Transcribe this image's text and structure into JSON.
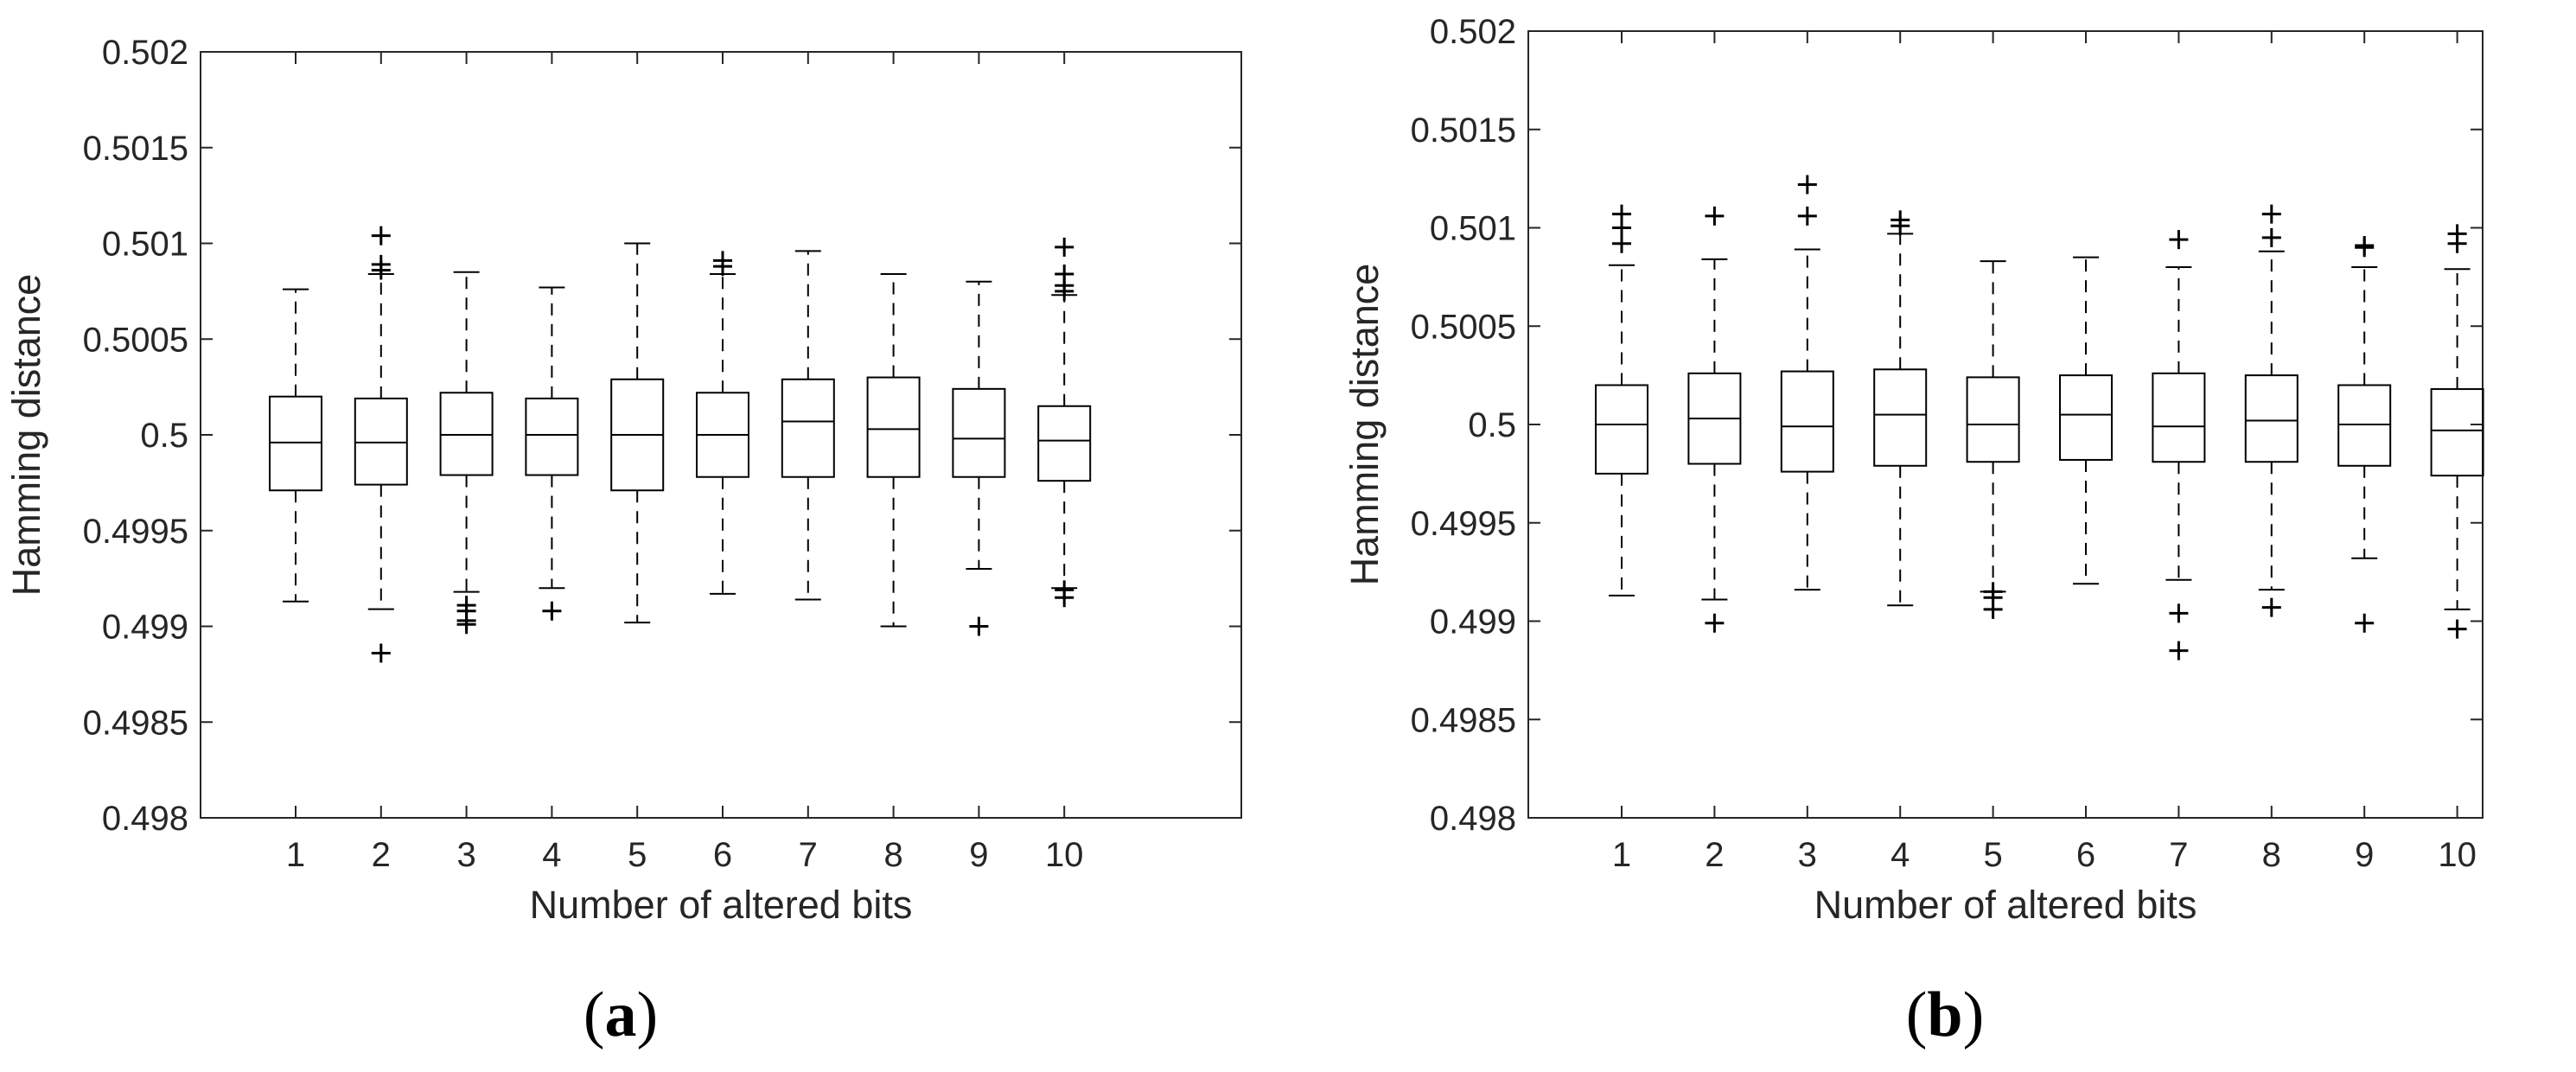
{
  "chart_data": [
    {
      "type": "boxplot",
      "panel_label": "a",
      "xlabel": "Number of altered bits",
      "ylabel": "Hamming distance",
      "ylim": [
        0.498,
        0.502
      ],
      "yticks": [
        "0.498",
        "0.4985",
        "0.499",
        "0.4995",
        "0.5",
        "0.5005",
        "0.501",
        "0.5015",
        "0.502"
      ],
      "categories": [
        "1",
        "2",
        "3",
        "4",
        "5",
        "6",
        "7",
        "8",
        "9",
        "10"
      ],
      "boxes": [
        {
          "whisker_low": 0.49913,
          "q1": 0.49971,
          "median": 0.49996,
          "q3": 0.5002,
          "whisker_high": 0.50076,
          "outliers": []
        },
        {
          "whisker_low": 0.49909,
          "q1": 0.49974,
          "median": 0.49996,
          "q3": 0.50019,
          "whisker_high": 0.50084,
          "outliers": [
            0.49886,
            0.50086,
            0.50089,
            0.50104
          ]
        },
        {
          "whisker_low": 0.49918,
          "q1": 0.49979,
          "median": 0.5,
          "q3": 0.50022,
          "whisker_high": 0.50085,
          "outliers": [
            0.49901,
            0.49903,
            0.49908,
            0.49911
          ]
        },
        {
          "whisker_low": 0.4992,
          "q1": 0.49979,
          "median": 0.5,
          "q3": 0.50019,
          "whisker_high": 0.50077,
          "outliers": [
            0.49908
          ]
        },
        {
          "whisker_low": 0.49902,
          "q1": 0.49971,
          "median": 0.5,
          "q3": 0.50029,
          "whisker_high": 0.501,
          "outliers": []
        },
        {
          "whisker_low": 0.49917,
          "q1": 0.49978,
          "median": 0.5,
          "q3": 0.50022,
          "whisker_high": 0.50084,
          "outliers": [
            0.50088,
            0.50091
          ]
        },
        {
          "whisker_low": 0.49914,
          "q1": 0.49978,
          "median": 0.50007,
          "q3": 0.50029,
          "whisker_high": 0.50096,
          "outliers": []
        },
        {
          "whisker_low": 0.499,
          "q1": 0.49978,
          "median": 0.50003,
          "q3": 0.5003,
          "whisker_high": 0.50084,
          "outliers": []
        },
        {
          "whisker_low": 0.4993,
          "q1": 0.49978,
          "median": 0.49998,
          "q3": 0.50024,
          "whisker_high": 0.5008,
          "outliers": [
            0.499
          ]
        },
        {
          "whisker_low": 0.4992,
          "q1": 0.49976,
          "median": 0.49997,
          "q3": 0.50015,
          "whisker_high": 0.50073,
          "outliers": [
            0.49915,
            0.49919,
            0.50075,
            0.50078,
            0.50084,
            0.50098
          ]
        }
      ]
    },
    {
      "type": "boxplot",
      "panel_label": "b",
      "xlabel": "Number of altered bits",
      "ylabel": "Hamming distance",
      "ylim": [
        0.498,
        0.502
      ],
      "yticks": [
        "0.498",
        "0.4985",
        "0.499",
        "0.4995",
        "0.5",
        "0.5005",
        "0.501",
        "0.5015",
        "0.502"
      ],
      "categories": [
        "1",
        "2",
        "3",
        "4",
        "5",
        "6",
        "7",
        "8",
        "9",
        "10"
      ],
      "boxes": [
        {
          "whisker_low": 0.49913,
          "q1": 0.49975,
          "median": 0.5,
          "q3": 0.5002,
          "whisker_high": 0.50081,
          "outliers": [
            0.50092,
            0.501,
            0.50107
          ]
        },
        {
          "whisker_low": 0.49911,
          "q1": 0.4998,
          "median": 0.50003,
          "q3": 0.50026,
          "whisker_high": 0.50084,
          "outliers": [
            0.49899,
            0.50106
          ]
        },
        {
          "whisker_low": 0.49916,
          "q1": 0.49976,
          "median": 0.49999,
          "q3": 0.50027,
          "whisker_high": 0.50089,
          "outliers": [
            0.50106,
            0.50122
          ]
        },
        {
          "whisker_low": 0.49908,
          "q1": 0.49979,
          "median": 0.50005,
          "q3": 0.50028,
          "whisker_high": 0.50097,
          "outliers": [
            0.50101,
            0.50104
          ]
        },
        {
          "whisker_low": 0.49915,
          "q1": 0.49981,
          "median": 0.5,
          "q3": 0.50024,
          "whisker_high": 0.50083,
          "outliers": [
            0.49906,
            0.49912,
            0.49915
          ]
        },
        {
          "whisker_low": 0.49919,
          "q1": 0.49982,
          "median": 0.50005,
          "q3": 0.50025,
          "whisker_high": 0.50085,
          "outliers": []
        },
        {
          "whisker_low": 0.49921,
          "q1": 0.49981,
          "median": 0.49999,
          "q3": 0.50026,
          "whisker_high": 0.5008,
          "outliers": [
            0.49885,
            0.49904,
            0.50094
          ]
        },
        {
          "whisker_low": 0.49916,
          "q1": 0.49981,
          "median": 0.50002,
          "q3": 0.50025,
          "whisker_high": 0.50088,
          "outliers": [
            0.49907,
            0.50095,
            0.50107
          ]
        },
        {
          "whisker_low": 0.49932,
          "q1": 0.49979,
          "median": 0.5,
          "q3": 0.5002,
          "whisker_high": 0.5008,
          "outliers": [
            0.49899,
            0.5009,
            0.50091
          ]
        },
        {
          "whisker_low": 0.49906,
          "q1": 0.49974,
          "median": 0.49997,
          "q3": 0.50018,
          "whisker_high": 0.50079,
          "outliers": [
            0.49896,
            0.50092,
            0.50097
          ]
        }
      ]
    }
  ]
}
